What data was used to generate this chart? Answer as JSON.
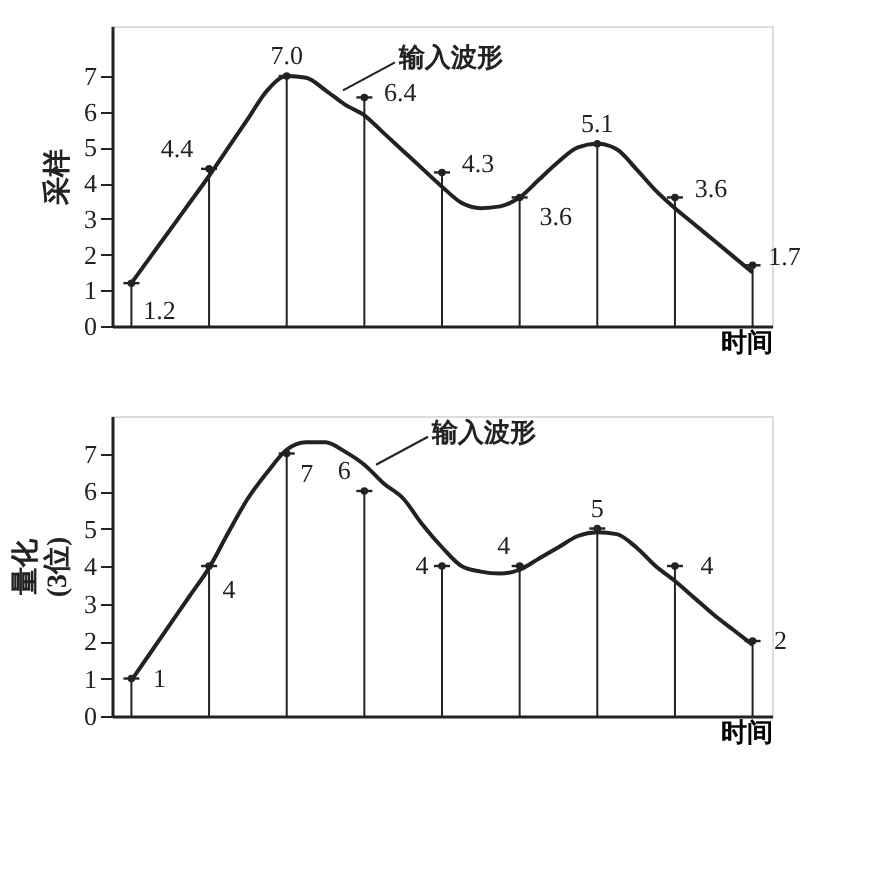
{
  "chart_data": [
    {
      "type": "lollipop",
      "ylabel": "采样",
      "xlabel": "时间",
      "categories": [
        null,
        null,
        null,
        null,
        null,
        null,
        null,
        null,
        null,
        null,
        null,
        null,
        null,
        null,
        null,
        null,
        null,
        null,
        null,
        null,
        null,
        null,
        null,
        null,
        null,
        null,
        null,
        null,
        null,
        null,
        null,
        null,
        null
      ],
      "ylim": [
        0,
        8.4
      ],
      "yticks": [
        0,
        1,
        2,
        3,
        4,
        5,
        6,
        7
      ],
      "tick_labels": "y",
      "annotations": [
        "输入波形"
      ],
      "series": [
        {
          "type": "line",
          "color": "#222222",
          "values": [
            1.2,
            1.95,
            2.7,
            3.45,
            4.2,
            5.0,
            5.8,
            6.6,
            7.0,
            6.95,
            6.6,
            6.2,
            5.9,
            5.4,
            4.9,
            4.4,
            3.9,
            3.45,
            3.3,
            3.35,
            3.6,
            4.1,
            4.6,
            5.0,
            5.1,
            4.95,
            4.4,
            3.8,
            3.3,
            2.85,
            2.4,
            1.95,
            1.5
          ]
        },
        {
          "color": "#222222",
          "values": [
            1.2,
            null,
            null,
            null,
            4.4,
            null,
            null,
            null,
            7.0,
            null,
            null,
            null,
            6.4,
            null,
            null,
            null,
            4.3,
            null,
            null,
            null,
            3.6,
            null,
            null,
            null,
            5.1,
            null,
            null,
            null,
            3.6,
            null,
            null,
            null,
            1.7
          ],
          "value_labels": [
            "1.2",
            null,
            null,
            null,
            "4.4",
            null,
            null,
            null,
            "7.0",
            null,
            null,
            null,
            "6.4",
            null,
            null,
            null,
            "4.3",
            null,
            null,
            null,
            "3.6",
            null,
            null,
            null,
            "5.1",
            null,
            null,
            null,
            "3.6",
            null,
            null,
            null,
            "1.7"
          ]
        }
      ]
    },
    {
      "type": "lollipop",
      "ylabel": "量化\n(3位)",
      "xlabel": "时间",
      "categories": [
        null,
        null,
        null,
        null,
        null,
        null,
        null,
        null,
        null,
        null,
        null,
        null,
        null,
        null,
        null,
        null,
        null,
        null,
        null,
        null,
        null,
        null,
        null,
        null,
        null,
        null,
        null,
        null,
        null,
        null,
        null,
        null,
        null
      ],
      "ylim": [
        0,
        8
      ],
      "yticks": [
        0,
        1,
        2,
        3,
        4,
        5,
        6,
        7
      ],
      "tick_labels": "y",
      "annotations": [
        "输入波形"
      ],
      "series": [
        {
          "type": "line",
          "color": "#222222",
          "values": [
            0.95,
            1.7,
            2.45,
            3.2,
            3.95,
            4.9,
            5.8,
            6.5,
            7.1,
            7.3,
            7.3,
            7.05,
            6.7,
            6.2,
            5.8,
            5.1,
            4.5,
            4.0,
            3.85,
            3.8,
            3.9,
            4.2,
            4.5,
            4.8,
            4.9,
            4.85,
            4.5,
            4.0,
            3.6,
            3.15,
            2.7,
            2.3,
            1.9
          ]
        },
        {
          "color": "#222222",
          "values": [
            1,
            null,
            null,
            null,
            4,
            null,
            null,
            null,
            7,
            null,
            null,
            null,
            6,
            null,
            null,
            null,
            4,
            null,
            null,
            null,
            4,
            null,
            null,
            null,
            5,
            null,
            null,
            null,
            4,
            null,
            null,
            null,
            2
          ],
          "value_labels": [
            "1",
            null,
            null,
            null,
            "4",
            null,
            null,
            null,
            "7",
            null,
            null,
            null,
            "6",
            null,
            null,
            null,
            "4",
            null,
            null,
            null,
            "4",
            null,
            null,
            null,
            "5",
            null,
            null,
            null,
            "4",
            null,
            null,
            null,
            "2"
          ]
        }
      ]
    }
  ]
}
